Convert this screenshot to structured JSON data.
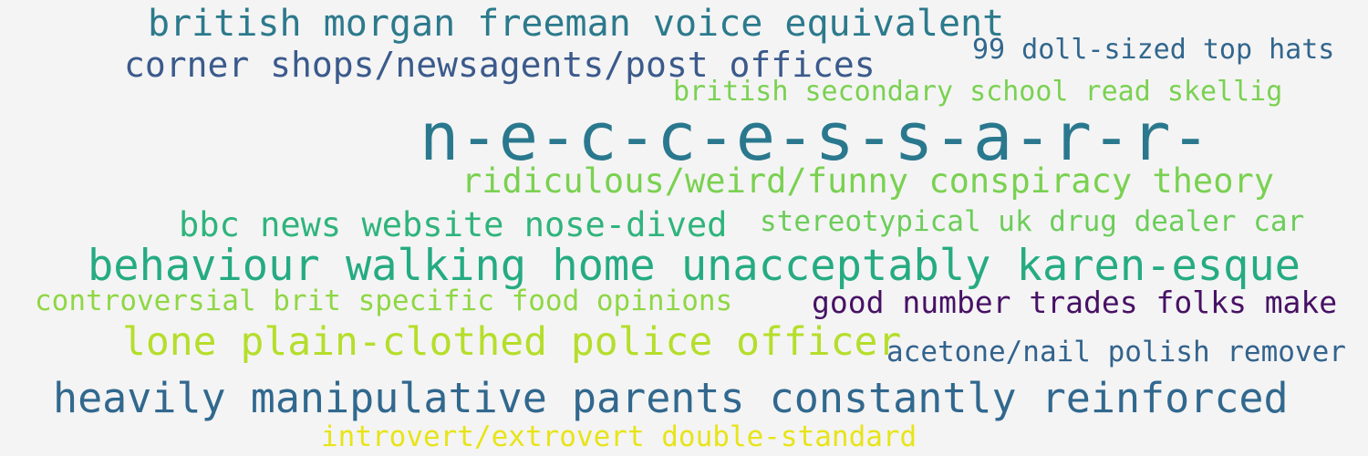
{
  "word_cloud": {
    "words": [
      {
        "text": "british morgan freeman voice equivalent",
        "color": "#2c7a8c"
      },
      {
        "text": "corner shops/newsagents/post offices",
        "color": "#3b5a8c"
      },
      {
        "text": "99 doll-sized top hats",
        "color": "#31668d"
      },
      {
        "text": "british secondary school read skellig",
        "color": "#7ad151"
      },
      {
        "text": "n-e-c-c-e-s-s-a-r-r-",
        "color": "#2a788e"
      },
      {
        "text": "ridiculous/weird/funny conspiracy theory",
        "color": "#7ad151"
      },
      {
        "text": "bbc news website nose-dived",
        "color": "#2fb47c"
      },
      {
        "text": "stereotypical uk drug dealer car",
        "color": "#6ccd5a"
      },
      {
        "text": "behaviour walking home unacceptably karen-esque",
        "color": "#25ab82"
      },
      {
        "text": "controversial brit specific food opinions",
        "color": "#8fd744"
      },
      {
        "text": "good number trades folks make",
        "color": "#471164"
      },
      {
        "text": "lone plain-clothed police officer",
        "color": "#b5de2b"
      },
      {
        "text": "acetone/nail polish remover",
        "color": "#33638d"
      },
      {
        "text": "heavily manipulative parents constantly reinforced",
        "color": "#31688e"
      },
      {
        "text": "introvert/extrovert double-standard",
        "color": "#e7e419"
      }
    ]
  }
}
